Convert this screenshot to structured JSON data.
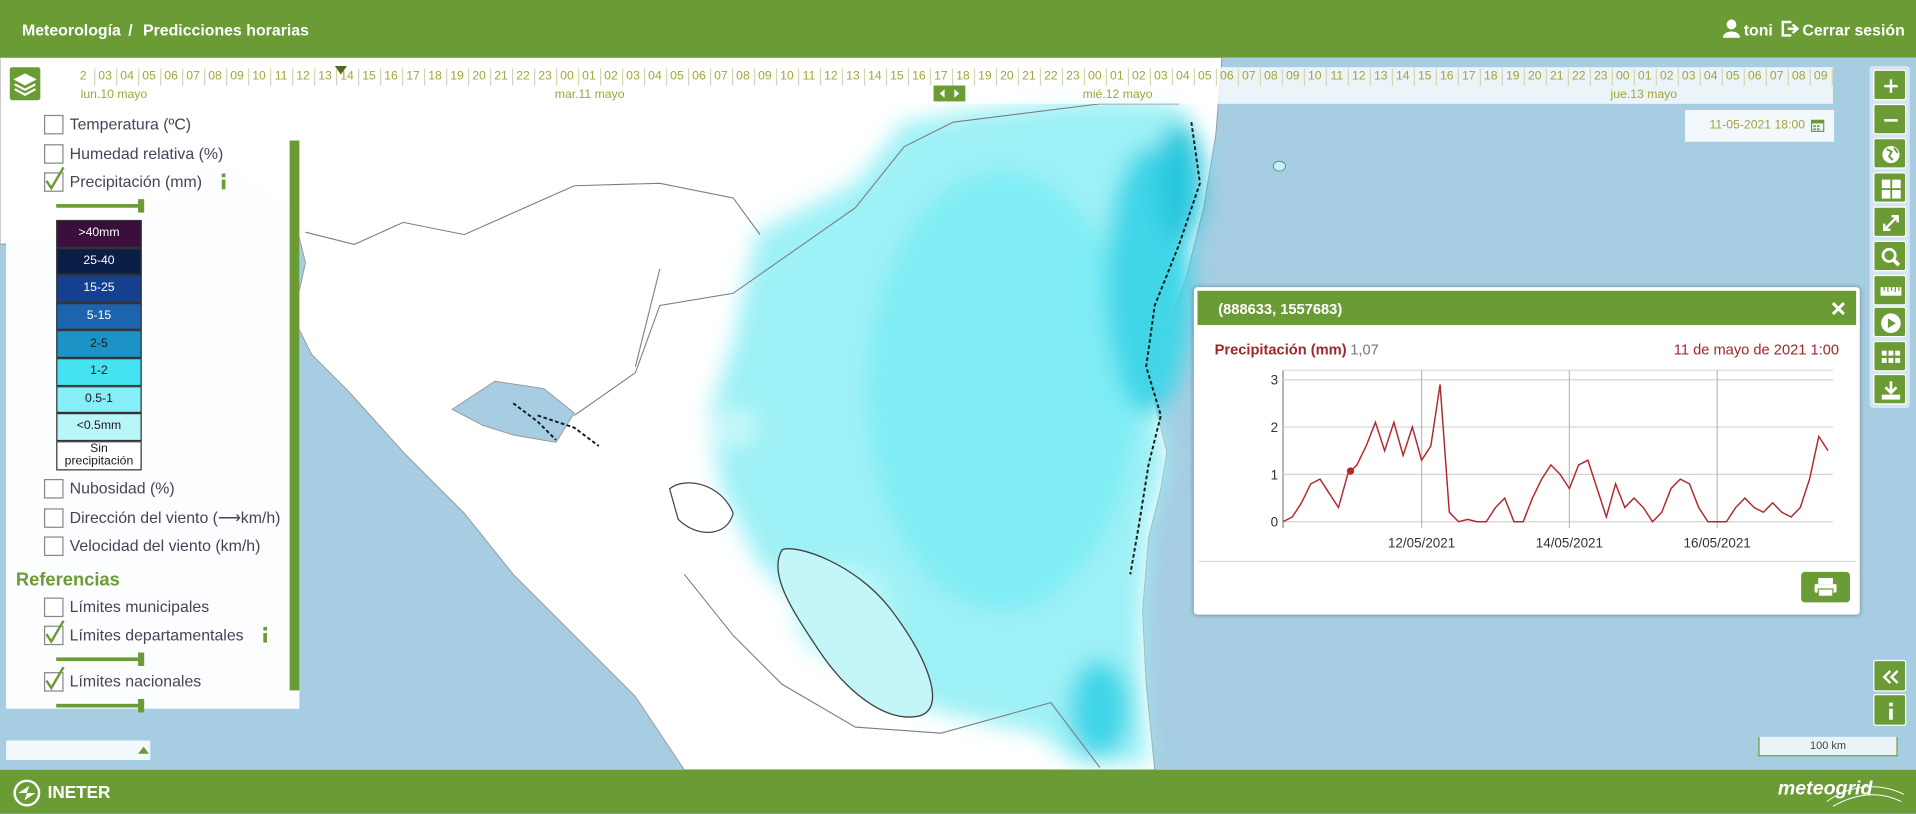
{
  "header": {
    "breadcrumb": [
      "Meteorología",
      "Predicciones horarias"
    ],
    "separator": "/",
    "user": "toni",
    "logout": "Cerrar sesión"
  },
  "timeline": {
    "days": [
      {
        "label": "lun.10 mayo",
        "hours": [
          "2",
          "03",
          "04",
          "05",
          "06",
          "07",
          "08",
          "09",
          "10",
          "11",
          "12",
          "13",
          "14",
          "15",
          "16",
          "17",
          "18",
          "19",
          "20",
          "21",
          "22",
          "23"
        ]
      },
      {
        "label": "mar.11 mayo",
        "hours": [
          "00",
          "01",
          "02",
          "03",
          "04",
          "05",
          "06",
          "07",
          "08",
          "09",
          "10",
          "11",
          "12",
          "13",
          "14",
          "15",
          "16",
          "17",
          "18",
          "19",
          "20",
          "21",
          "22",
          "23"
        ]
      },
      {
        "label": "mié.12 mayo",
        "hours": [
          "00",
          "01",
          "02",
          "03",
          "04",
          "05",
          "06",
          "07",
          "08",
          "09",
          "10",
          "11",
          "12",
          "13",
          "14",
          "15",
          "16",
          "17",
          "18",
          "19",
          "20",
          "21",
          "22",
          "23"
        ]
      },
      {
        "label": "jue.13 mayo",
        "hours": [
          "00",
          "01",
          "02",
          "03",
          "04",
          "05",
          "06",
          "07",
          "08",
          "09"
        ]
      }
    ]
  },
  "date_box": "11-05-2021 18:00",
  "layers": [
    {
      "label": "Temperatura (ºC)",
      "checked": false
    },
    {
      "label": "Humedad relativa (%)",
      "checked": false
    },
    {
      "label": "Precipitación (mm)",
      "checked": true,
      "info": true,
      "legend": [
        {
          "label": ">40mm",
          "color": "#3b0f3c",
          "text_color": "#ffffff"
        },
        {
          "label": "25-40",
          "color": "#0b1e47",
          "text_color": "#ffffff"
        },
        {
          "label": "15-25",
          "color": "#15408f",
          "text_color": "#ffffff"
        },
        {
          "label": "5-15",
          "color": "#1d63ae",
          "text_color": "#ffffff"
        },
        {
          "label": "2-5",
          "color": "#1b93c6",
          "text_color": "#1a1a1a"
        },
        {
          "label": "1-2",
          "color": "#45e3f2",
          "text_color": "#1a1a1a"
        },
        {
          "label": "0.5-1",
          "color": "#86eef6",
          "text_color": "#1a1a1a"
        },
        {
          "label": "<0.5mm",
          "color": "#b8f6f9",
          "text_color": "#1a1a1a"
        },
        {
          "label": "Sin precipitación",
          "color": "#ffffff",
          "text_color": "#1a1a1a"
        }
      ]
    },
    {
      "label": "Nubosidad (%)",
      "checked": false
    },
    {
      "label": "Dirección del viento (⟶km/h)",
      "checked": false
    },
    {
      "label": "Velocidad del viento (km/h)",
      "checked": false
    }
  ],
  "references_title": "Referencias",
  "references": [
    {
      "label": "Límites municipales",
      "checked": false
    },
    {
      "label": "Límites departamentales",
      "checked": true,
      "info": true
    },
    {
      "label": "Límites nacionales",
      "checked": true
    }
  ],
  "popup": {
    "title": "(888633, 1557683)",
    "variable": "Precipitación (mm)",
    "date": "11 de mayo de 2021 1:00",
    "chart": {
      "type": "line",
      "color": "#b3282d",
      "values": [
        0,
        0.1,
        0.4,
        0.8,
        0.9,
        0.6,
        0.3,
        1.0,
        1.2,
        1.6,
        2.1,
        1.5,
        2.1,
        1.4,
        2.0,
        1.3,
        1.6,
        2.9,
        0.2,
        0,
        0.05,
        0,
        0,
        0.3,
        0.5,
        0,
        0,
        0.5,
        0.9,
        1.2,
        1.0,
        0.7,
        1.2,
        1.3,
        0.7,
        0.1,
        0.8,
        0.3,
        0.5,
        0.3,
        0,
        0.2,
        0.7,
        0.9,
        0.8,
        0.3,
        0,
        0,
        0,
        0.3,
        0.5,
        0.3,
        0.2,
        0.4,
        0.2,
        0.1,
        0.3,
        0.9,
        1.8,
        1.5
      ],
      "current": {
        "x": 7.3,
        "value": 1.07,
        "label": "1,07"
      },
      "xlim": [
        0,
        59
      ],
      "xticks": [
        {
          "value": 15,
          "label": "12/05/2021"
        },
        {
          "value": 31,
          "label": "14/05/2021"
        },
        {
          "value": 47,
          "label": "16/05/2021"
        }
      ],
      "ylim": [
        -0.13,
        3.2
      ],
      "yticks": [
        0,
        1,
        2,
        3
      ],
      "grid": true
    }
  },
  "scale": "100 km",
  "footer": {
    "left": "INETER",
    "right": "meteogrid"
  }
}
